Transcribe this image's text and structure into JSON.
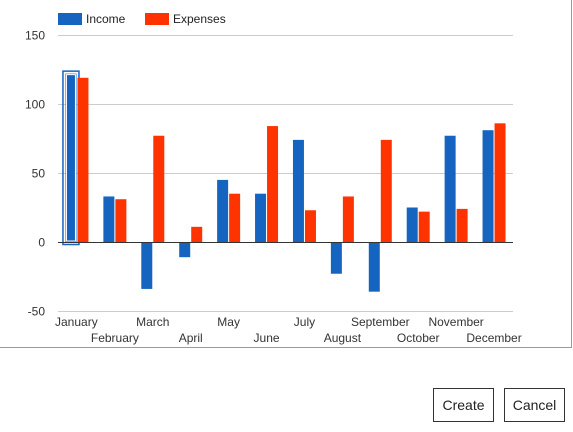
{
  "chart_data": {
    "type": "bar",
    "title": "",
    "xlabel": "",
    "ylabel": "",
    "ylim": [
      -50,
      150
    ],
    "yticks": [
      150,
      100,
      50,
      0,
      -50
    ],
    "grid": true,
    "legend_position": "top-left",
    "categories": [
      "January",
      "February",
      "March",
      "April",
      "May",
      "June",
      "July",
      "August",
      "September",
      "October",
      "November",
      "December"
    ],
    "series": [
      {
        "name": "Income",
        "color": "#1565c0",
        "values": [
          122,
          33,
          -34,
          -11,
          45,
          35,
          74,
          -23,
          -36,
          25,
          77,
          81
        ]
      },
      {
        "name": "Expenses",
        "color": "#ff3300",
        "values": [
          119,
          31,
          77,
          11,
          35,
          84,
          23,
          33,
          74,
          22,
          24,
          86
        ]
      }
    ],
    "selected": {
      "series": "Income",
      "category": "January"
    }
  },
  "buttons": {
    "create_label": "Create",
    "cancel_label": "Cancel"
  }
}
